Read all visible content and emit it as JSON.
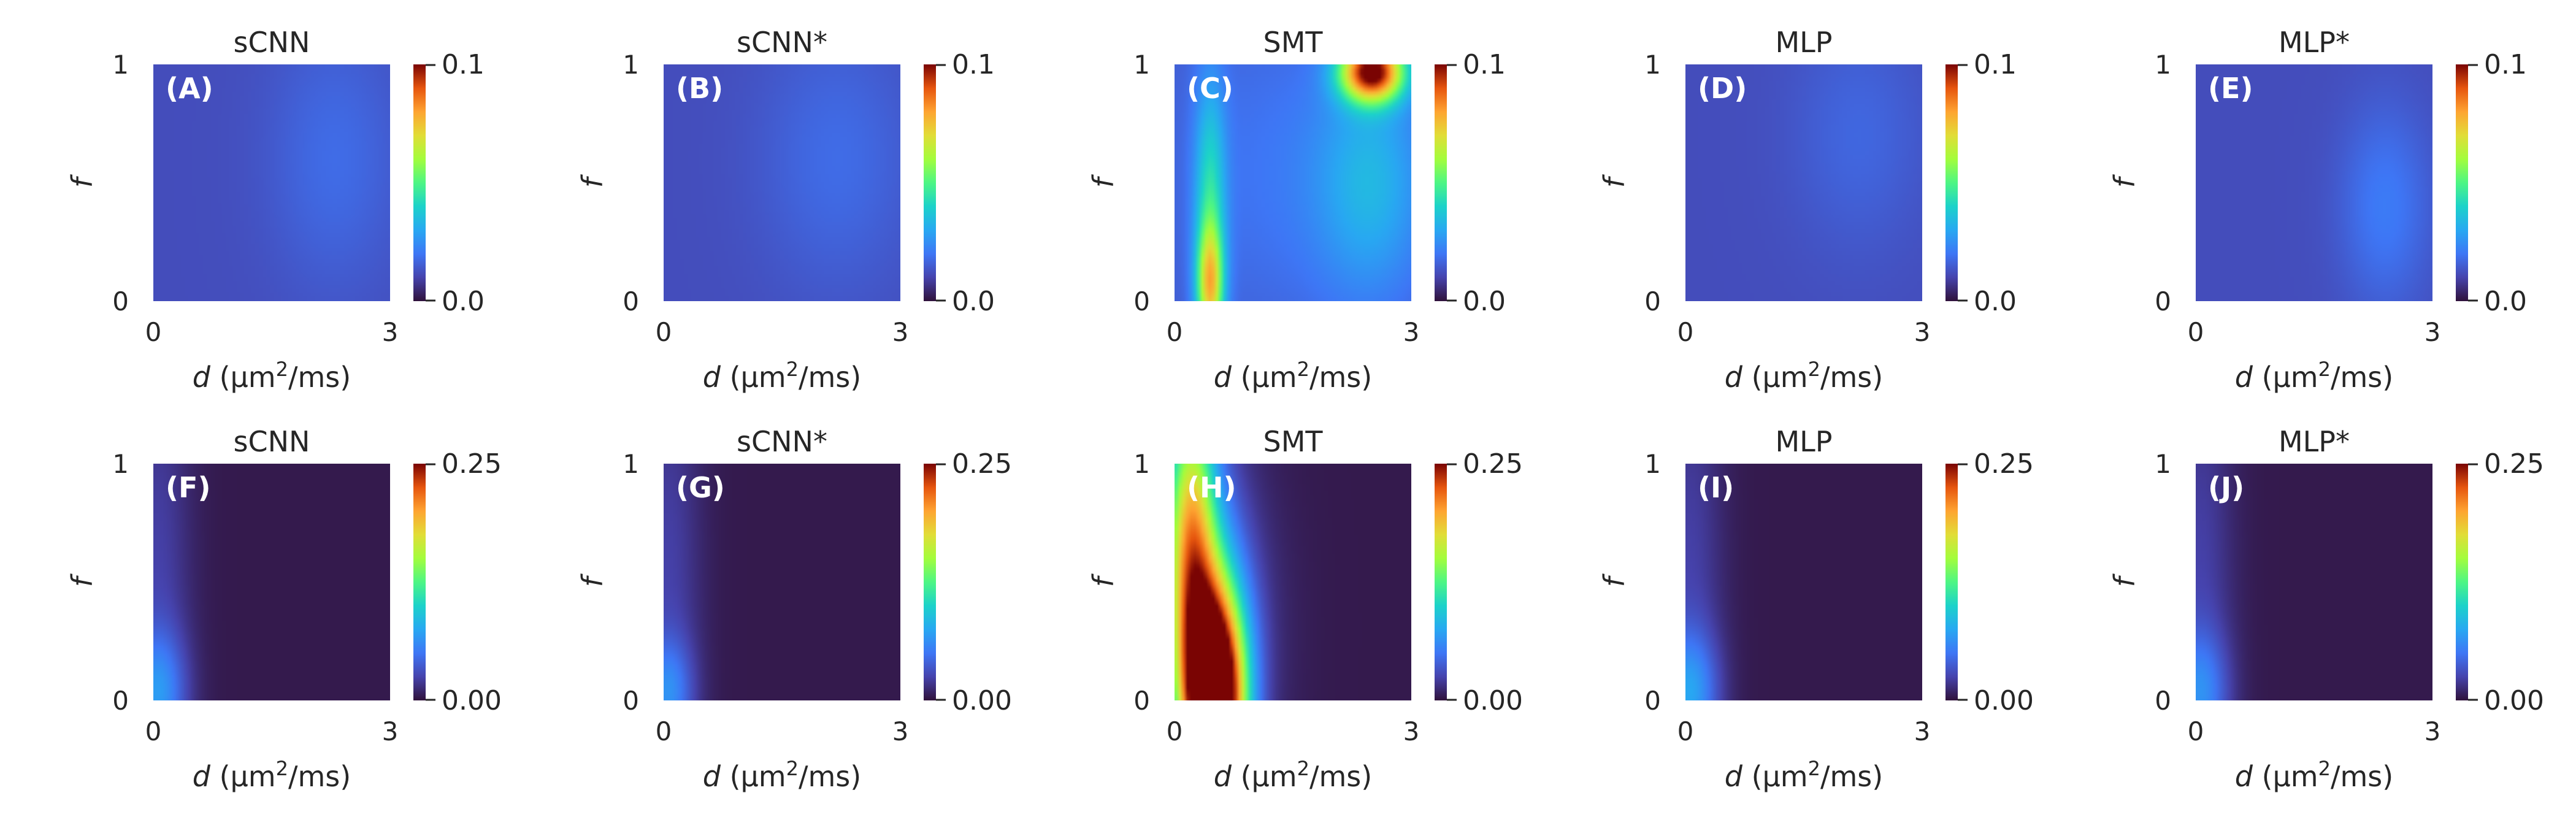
{
  "chart_data": {
    "type": "heatmap",
    "colormap": "turbo",
    "x_label": {
      "var": "d",
      "unit_pre": "(μm",
      "unit_sup": "2",
      "unit_post": "/ms)"
    },
    "y_label": "f",
    "x_ticks": [
      "0",
      "3"
    ],
    "y_ticks": [
      "0",
      "1"
    ],
    "xlim": [
      0,
      3
    ],
    "ylim": [
      0,
      1
    ],
    "rows": [
      {
        "vmin": 0.0,
        "vmax": 0.1,
        "colorbar_ticks": [
          "0.0",
          "0.1"
        ],
        "panels": [
          {
            "title": "sCNN",
            "label": "(A)",
            "base": 0.012,
            "blobs": [
              {
                "cx": 2.3,
                "cy": 0.6,
                "sx": 0.6,
                "sy": 0.4,
                "a": 0.006
              }
            ]
          },
          {
            "title": "sCNN*",
            "label": "(B)",
            "base": 0.012,
            "blobs": [
              {
                "cx": 2.2,
                "cy": 0.6,
                "sx": 0.7,
                "sy": 0.4,
                "a": 0.006
              }
            ]
          },
          {
            "title": "SMT",
            "label": "(C)",
            "base": 0.014,
            "blobs": [
              {
                "cx": 2.5,
                "cy": 0.97,
                "sx": 0.28,
                "sy": 0.09,
                "a": 0.085
              },
              {
                "cx": 0.45,
                "cy": 0.06,
                "sx": 0.12,
                "sy": 0.18,
                "a": 0.05
              },
              {
                "cx": 0.45,
                "cy": 0.45,
                "sx": 0.14,
                "sy": 0.35,
                "a": 0.025
              },
              {
                "cx": 2.5,
                "cy": 0.5,
                "sx": 0.5,
                "sy": 0.35,
                "a": 0.017
              },
              {
                "cx": 1.3,
                "cy": 0.55,
                "sx": 1.0,
                "sy": 0.5,
                "a": 0.006
              }
            ]
          },
          {
            "title": "MLP",
            "label": "(D)",
            "base": 0.012,
            "blobs": [
              {
                "cx": 2.2,
                "cy": 0.7,
                "sx": 0.6,
                "sy": 0.35,
                "a": 0.005
              }
            ]
          },
          {
            "title": "MLP*",
            "label": "(E)",
            "base": 0.012,
            "blobs": [
              {
                "cx": 2.4,
                "cy": 0.4,
                "sx": 0.4,
                "sy": 0.3,
                "a": 0.009
              }
            ]
          }
        ]
      },
      {
        "vmin": 0.0,
        "vmax": 0.25,
        "colorbar_ticks": [
          "0.00",
          "0.25"
        ],
        "panels": [
          {
            "title": "sCNN",
            "label": "(F)",
            "base": 0.004,
            "blobs": [
              {
                "cx": 0.05,
                "cy": 0.03,
                "sx": 0.25,
                "sy": 0.18,
                "a": 0.05
              },
              {
                "cx": 0.05,
                "cy": 0.5,
                "sx": 0.3,
                "sy": 0.7,
                "a": 0.02
              }
            ]
          },
          {
            "title": "sCNN*",
            "label": "(G)",
            "base": 0.004,
            "blobs": [
              {
                "cx": 0.05,
                "cy": 0.03,
                "sx": 0.22,
                "sy": 0.16,
                "a": 0.045
              },
              {
                "cx": 0.05,
                "cy": 0.5,
                "sx": 0.3,
                "sy": 0.7,
                "a": 0.02
              }
            ]
          },
          {
            "title": "SMT",
            "label": "(H)",
            "base": 0.004,
            "blobs": [
              {
                "cx": 0.5,
                "cy": 0.0,
                "sx": 0.28,
                "sy": 0.33,
                "a": 0.32
              },
              {
                "cx": 0.2,
                "cy": 0.7,
                "sx": 0.22,
                "sy": 0.45,
                "a": 0.15
              },
              {
                "cx": 0.35,
                "cy": 0.45,
                "sx": 0.35,
                "sy": 0.5,
                "a": 0.05
              },
              {
                "cx": 0.7,
                "cy": 0.3,
                "sx": 0.5,
                "sy": 0.5,
                "a": 0.015
              }
            ]
          },
          {
            "title": "MLP",
            "label": "(I)",
            "base": 0.004,
            "blobs": [
              {
                "cx": 0.05,
                "cy": 0.03,
                "sx": 0.25,
                "sy": 0.18,
                "a": 0.055
              },
              {
                "cx": 0.05,
                "cy": 0.5,
                "sx": 0.3,
                "sy": 0.7,
                "a": 0.02
              }
            ]
          },
          {
            "title": "MLP*",
            "label": "(J)",
            "base": 0.004,
            "blobs": [
              {
                "cx": 0.05,
                "cy": 0.03,
                "sx": 0.25,
                "sy": 0.18,
                "a": 0.045
              },
              {
                "cx": 0.05,
                "cy": 0.5,
                "sx": 0.3,
                "sy": 0.7,
                "a": 0.02
              }
            ]
          }
        ]
      }
    ]
  }
}
